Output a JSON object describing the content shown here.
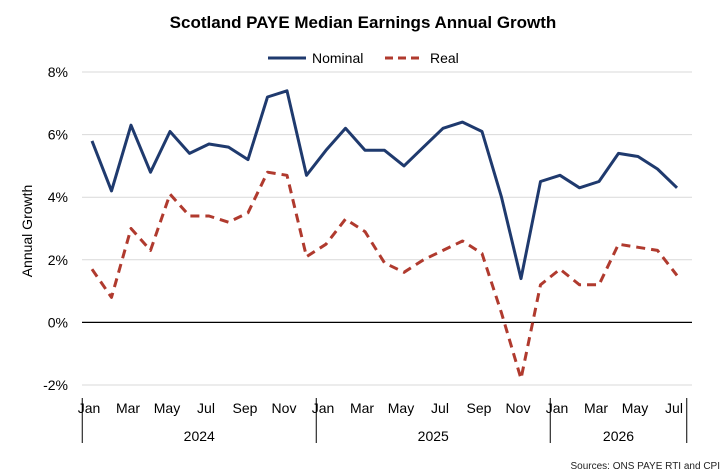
{
  "chart_data": {
    "type": "line",
    "title": "Scotland PAYE Median Earnings Annual Growth",
    "ylabel": "Annual Growth",
    "xlabel": "",
    "ylim": [
      -2,
      8
    ],
    "yticks": [
      -2,
      0,
      2,
      4,
      6,
      8
    ],
    "ytick_labels": [
      "-2%",
      "0%",
      "2%",
      "4%",
      "6%",
      "8%"
    ],
    "grid": "horizontal",
    "legend": "top-center",
    "month_labels": [
      "Jan",
      "Mar",
      "May",
      "Jul",
      "Sep",
      "Nov",
      "Jan",
      "Mar",
      "May",
      "Jul",
      "Sep",
      "Nov",
      "Jan",
      "Mar",
      "May",
      "Jul"
    ],
    "years": [
      "2024",
      "2025",
      "2026"
    ],
    "x": [
      "2024-01",
      "2024-02",
      "2024-03",
      "2024-04",
      "2024-05",
      "2024-06",
      "2024-07",
      "2024-08",
      "2024-09",
      "2024-10",
      "2024-11",
      "2024-12",
      "2025-01",
      "2025-02",
      "2025-03",
      "2025-04",
      "2025-05",
      "2025-06",
      "2025-07",
      "2025-08",
      "2025-09",
      "2025-10",
      "2025-11",
      "2025-12",
      "2026-01",
      "2026-02",
      "2026-03",
      "2026-04",
      "2026-05",
      "2026-06",
      "2026-07"
    ],
    "series": [
      {
        "name": "Nominal",
        "color": "#1f3a6e",
        "style": "solid",
        "values": [
          5.8,
          4.2,
          6.3,
          4.8,
          6.1,
          5.4,
          5.7,
          5.6,
          5.2,
          7.2,
          7.4,
          4.7,
          5.5,
          6.2,
          5.5,
          5.5,
          5.0,
          5.6,
          6.2,
          6.4,
          6.1,
          4.0,
          1.4,
          4.5,
          4.7,
          4.3,
          4.5,
          5.4,
          5.3,
          4.9,
          4.3
        ]
      },
      {
        "name": "Real",
        "color": "#b03a2e",
        "style": "dashed",
        "values": [
          1.7,
          0.8,
          3.0,
          2.3,
          4.1,
          3.4,
          3.4,
          3.2,
          3.5,
          4.8,
          4.7,
          2.1,
          2.5,
          3.3,
          2.9,
          1.9,
          1.6,
          2.0,
          2.3,
          2.6,
          2.2,
          0.3,
          -1.8,
          1.2,
          1.7,
          1.2,
          1.2,
          2.5,
          2.4,
          2.3,
          1.5
        ]
      }
    ],
    "source": "Sources: ONS PAYE RTI and CPI"
  }
}
